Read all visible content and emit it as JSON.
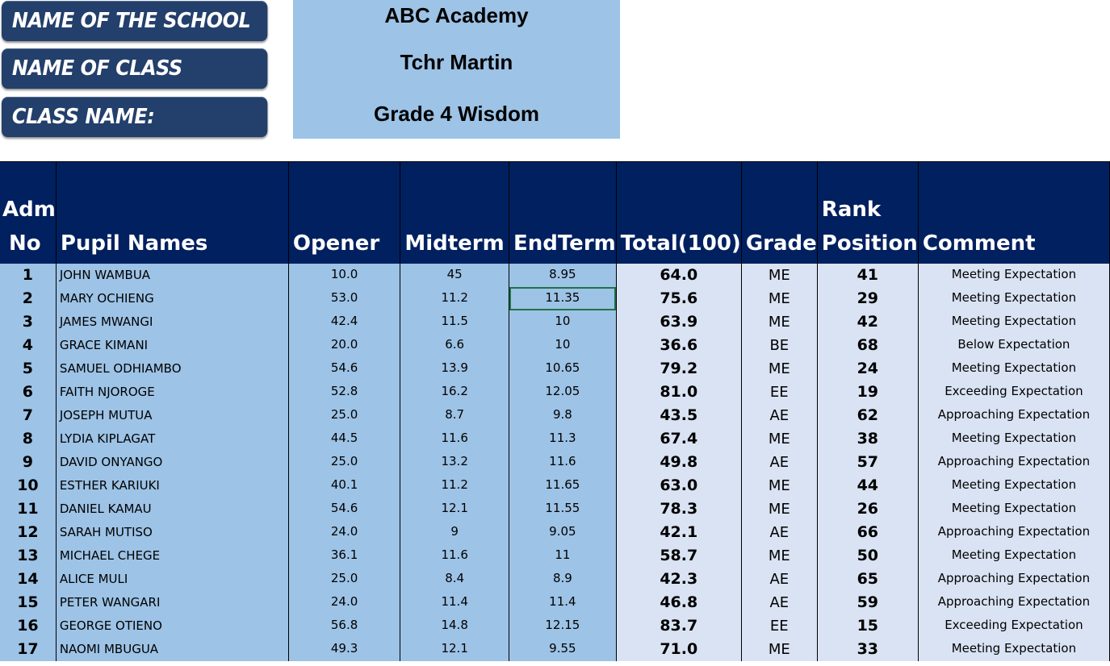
{
  "info": {
    "school_label": "NAME OF  THE SCHOOL",
    "teacher_label": "NAME OF  CLASS TEACHER:",
    "class_label": "CLASS NAME:",
    "school_value": "ABC Academy",
    "teacher_value": "Tchr Martin",
    "class_value": "Grade 4 Wisdom"
  },
  "table": {
    "headers": {
      "adm_line1": "Adm",
      "adm_line2": "No",
      "name": "Pupil Names",
      "opener": "Opener",
      "midterm": "Midterm",
      "endterm": "EndTerm",
      "total": "Total(100)",
      "grade": "Grade",
      "rank_line1": "Rank",
      "rank_line2": "Position",
      "comment": "Comment"
    },
    "rows": [
      {
        "adm": "1",
        "name": "JOHN WAMBUA",
        "opener": "10.0",
        "midterm": "45",
        "endterm": "8.95",
        "total": "64.0",
        "grade": "ME",
        "rank": "41",
        "comment": "Meeting Expectation"
      },
      {
        "adm": "2",
        "name": "MARY OCHIENG",
        "opener": "53.0",
        "midterm": "11.2",
        "endterm": "11.35",
        "total": "75.6",
        "grade": "ME",
        "rank": "29",
        "comment": "Meeting Expectation"
      },
      {
        "adm": "3",
        "name": "JAMES MWANGI",
        "opener": "42.4",
        "midterm": "11.5",
        "endterm": "10",
        "total": "63.9",
        "grade": "ME",
        "rank": "42",
        "comment": "Meeting Expectation"
      },
      {
        "adm": "4",
        "name": "GRACE KIMANI",
        "opener": "20.0",
        "midterm": "6.6",
        "endterm": "10",
        "total": "36.6",
        "grade": "BE",
        "rank": "68",
        "comment": "Below Expectation"
      },
      {
        "adm": "5",
        "name": "SAMUEL ODHIAMBO",
        "opener": "54.6",
        "midterm": "13.9",
        "endterm": "10.65",
        "total": "79.2",
        "grade": "ME",
        "rank": "24",
        "comment": "Meeting Expectation"
      },
      {
        "adm": "6",
        "name": "FAITH NJOROGE",
        "opener": "52.8",
        "midterm": "16.2",
        "endterm": "12.05",
        "total": "81.0",
        "grade": "EE",
        "rank": "19",
        "comment": "Exceeding Expectation"
      },
      {
        "adm": "7",
        "name": "JOSEPH MUTUA",
        "opener": "25.0",
        "midterm": "8.7",
        "endterm": "9.8",
        "total": "43.5",
        "grade": "AE",
        "rank": "62",
        "comment": "Approaching Expectation"
      },
      {
        "adm": "8",
        "name": "LYDIA KIPLAGAT",
        "opener": "44.5",
        "midterm": "11.6",
        "endterm": "11.3",
        "total": "67.4",
        "grade": "ME",
        "rank": "38",
        "comment": "Meeting Expectation"
      },
      {
        "adm": "9",
        "name": "DAVID ONYANGO",
        "opener": "25.0",
        "midterm": "13.2",
        "endterm": "11.6",
        "total": "49.8",
        "grade": "AE",
        "rank": "57",
        "comment": "Approaching Expectation"
      },
      {
        "adm": "10",
        "name": "ESTHER KARIUKI",
        "opener": "40.1",
        "midterm": "11.2",
        "endterm": "11.65",
        "total": "63.0",
        "grade": "ME",
        "rank": "44",
        "comment": "Meeting Expectation"
      },
      {
        "adm": "11",
        "name": "DANIEL KAMAU",
        "opener": "54.6",
        "midterm": "12.1",
        "endterm": "11.55",
        "total": "78.3",
        "grade": "ME",
        "rank": "26",
        "comment": "Meeting Expectation"
      },
      {
        "adm": "12",
        "name": "SARAH MUTISO",
        "opener": "24.0",
        "midterm": "9",
        "endterm": "9.05",
        "total": "42.1",
        "grade": "AE",
        "rank": "66",
        "comment": "Approaching Expectation"
      },
      {
        "adm": "13",
        "name": "MICHAEL CHEGE",
        "opener": "36.1",
        "midterm": "11.6",
        "endterm": "11",
        "total": "58.7",
        "grade": "ME",
        "rank": "50",
        "comment": "Meeting Expectation"
      },
      {
        "adm": "14",
        "name": "ALICE MULI",
        "opener": "25.0",
        "midterm": "8.4",
        "endterm": "8.9",
        "total": "42.3",
        "grade": "AE",
        "rank": "65",
        "comment": "Approaching Expectation"
      },
      {
        "adm": "15",
        "name": "PETER WANGARI",
        "opener": "24.0",
        "midterm": "11.4",
        "endterm": "11.4",
        "total": "46.8",
        "grade": "AE",
        "rank": "59",
        "comment": "Approaching Expectation"
      },
      {
        "adm": "16",
        "name": "GEORGE OTIENO",
        "opener": "56.8",
        "midterm": "14.8",
        "endterm": "12.15",
        "total": "83.7",
        "grade": "EE",
        "rank": "15",
        "comment": "Exceeding Expectation"
      },
      {
        "adm": "17",
        "name": "NAOMI MBUGUA",
        "opener": "49.3",
        "midterm": "12.1",
        "endterm": "9.55",
        "total": "71.0",
        "grade": "ME",
        "rank": "33",
        "comment": "Meeting Expectation"
      }
    ]
  },
  "colors": {
    "header_bg": "#002060",
    "label_bg": "#233f6b",
    "light_blue": "#9dc3e6",
    "pale_blue": "#dae3f3",
    "selection": "#217346"
  }
}
